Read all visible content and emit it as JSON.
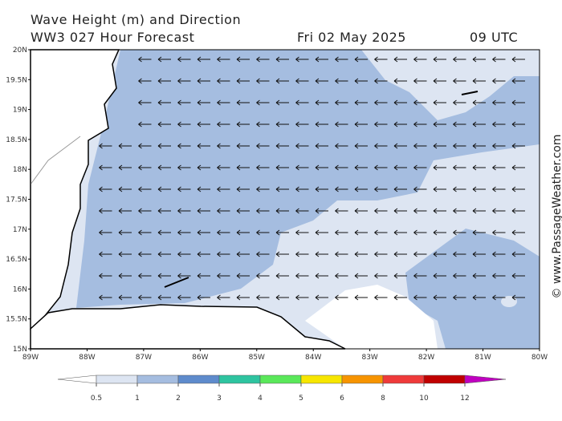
{
  "header": {
    "title": "Wave Height (m) and Direction",
    "subtitle": "WW3 027 Hour Forecast",
    "date": "Fri 02 May 2025",
    "time": "09 UTC"
  },
  "map": {
    "lat_ticks": [
      {
        "value": 20,
        "label": "20N"
      },
      {
        "value": 19.5,
        "label": "19.5N"
      },
      {
        "value": 19,
        "label": "19N"
      },
      {
        "value": 18.5,
        "label": "18.5N"
      },
      {
        "value": 18,
        "label": "18N"
      },
      {
        "value": 17.5,
        "label": "17.5N"
      },
      {
        "value": 17,
        "label": "17N"
      },
      {
        "value": 16.5,
        "label": "16.5N"
      },
      {
        "value": 16,
        "label": "16N"
      },
      {
        "value": 15.5,
        "label": "15.5N"
      },
      {
        "value": 15,
        "label": "15N"
      }
    ],
    "lon_ticks": [
      {
        "value": -89,
        "label": "89W"
      },
      {
        "value": -88,
        "label": "88W"
      },
      {
        "value": -87,
        "label": "87W"
      },
      {
        "value": -86,
        "label": "86W"
      },
      {
        "value": -85,
        "label": "85W"
      },
      {
        "value": -84,
        "label": "84W"
      },
      {
        "value": -83,
        "label": "83W"
      },
      {
        "value": -82,
        "label": "82W"
      },
      {
        "value": -81,
        "label": "81W"
      },
      {
        "value": -80,
        "label": "80W"
      }
    ]
  },
  "colorbar": {
    "levels": [
      0.5,
      1,
      2,
      3,
      4,
      5,
      6,
      8,
      10,
      12
    ],
    "colors": [
      "#ffffff",
      "#dde5f2",
      "#a5bde0",
      "#5e8bcc",
      "#2ec4a0",
      "#5ae85a",
      "#f7e600",
      "#f79400",
      "#ef3a3a",
      "#c00000",
      "#c000c0"
    ]
  },
  "watermark": "© www.PassageWeather.com"
}
